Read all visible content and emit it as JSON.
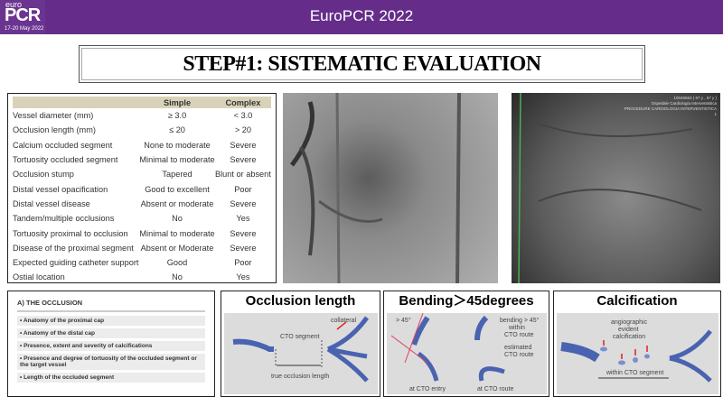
{
  "header": {
    "title": "EuroPCR 2022",
    "logo": {
      "top": "euro",
      "main": "PCR",
      "dates": "17-20 May 2022"
    },
    "color": "#652d89"
  },
  "slide_title": "STEP#1: SISTEMATIC EVALUATION",
  "criteria_table": {
    "columns": [
      "",
      "Simple",
      "Complex"
    ],
    "rows": [
      [
        "Vessel diameter (mm)",
        "≥ 3.0",
        "< 3.0"
      ],
      [
        "Occlusion length (mm)",
        "≤ 20",
        "> 20"
      ],
      [
        "Calcium occluded segment",
        "None to moderate",
        "Severe"
      ],
      [
        "Tortuosity occluded segment",
        "Minimal to moderate",
        "Severe"
      ],
      [
        "Occlusion stump",
        "Tapered",
        "Blunt or absent"
      ],
      [
        "Distal vessel opacification",
        "Good to excellent",
        "Poor"
      ],
      [
        "Distal vessel disease",
        "Absent or moderate",
        "Severe"
      ],
      [
        "Tandem/multiple occlusions",
        "No",
        "Yes"
      ],
      [
        "Tortuosity proximal to occlusion",
        "Minimal to moderate",
        "Severe"
      ],
      [
        "Disease of the proximal segment",
        "Absent or Moderate",
        "Severe"
      ],
      [
        "Expected guiding catheter support",
        "Good",
        "Poor"
      ],
      [
        "Ostial location",
        "No",
        "Yes"
      ]
    ]
  },
  "angiogram_2_overlay": [
    "10045553 ( 67 y , 67 y )",
    "Ospedale Cardiologia Interventistica",
    "PROCEDURE CARDIOLOGIA INTERVENTISTICA",
    "1"
  ],
  "occlusion_box": {
    "heading": "A)  THE OCCLUSION",
    "items": [
      "• Anatomy of the proximal cap",
      "• Anatomy of the distal cap",
      "• Presence, extent and severity of calcifications",
      "• Presence and degree of tortuosity of the occluded segment or the target vessel",
      "• Length of the occluded segment"
    ]
  },
  "diagrams": [
    {
      "title": "Occlusion length",
      "labels": [
        "collateral",
        "CTO segment",
        "true occlusion length"
      ]
    },
    {
      "title": "Bending＞45degrees",
      "labels": [
        "> 45°",
        "bending > 45°",
        "within",
        "CTO route",
        "estimated",
        "CTO route",
        "at CTO entry",
        "at CTO route"
      ]
    },
    {
      "title": "Calcification",
      "labels": [
        "angiographic",
        "evident",
        "calcification",
        "within CTO segment"
      ]
    }
  ],
  "colors": {
    "vessel": "#4a63b0",
    "arrow": "#e02020",
    "diagram_bg": "#dcdcdc"
  }
}
